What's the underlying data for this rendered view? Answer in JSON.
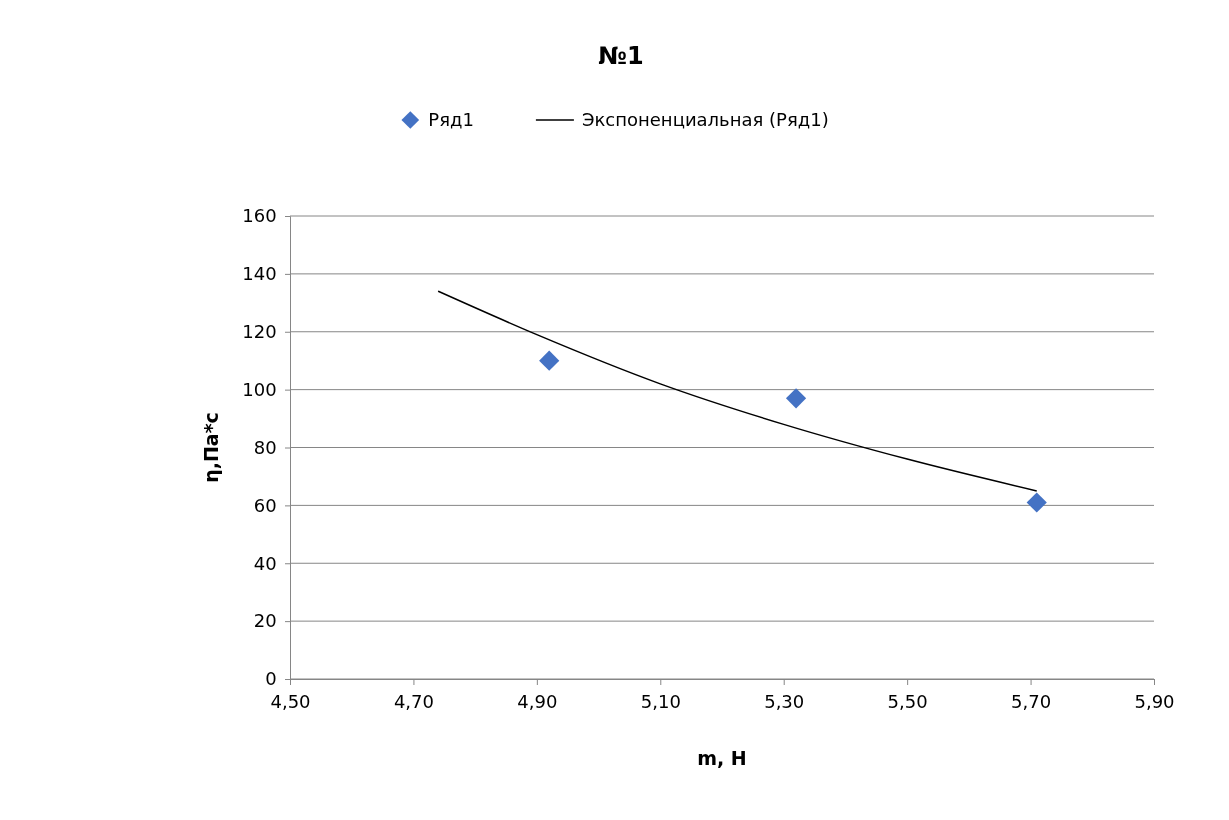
{
  "chart_data": {
    "type": "scatter",
    "title": "№1",
    "xlabel": "m, Н",
    "ylabel": "η,Па*с",
    "series": [
      {
        "name": "Ряд1",
        "type": "scatter",
        "color": "#4472c4",
        "marker": "diamond",
        "x": [
          4.92,
          5.32,
          5.71
        ],
        "values": [
          110,
          97,
          61
        ]
      },
      {
        "name": "Экспоненциальная (Ряд1)",
        "type": "line",
        "color": "#000000",
        "marker": "none",
        "line_style": "solid",
        "x": [
          4.74,
          4.9,
          5.1,
          5.3,
          5.5,
          5.71
        ],
        "values": [
          134,
          119,
          102,
          88,
          76,
          65
        ]
      }
    ],
    "xlim": [
      4.5,
      5.9
    ],
    "xticks": [
      {
        "value": 4.5,
        "label": "4,50"
      },
      {
        "value": 4.7,
        "label": "4,70"
      },
      {
        "value": 4.9,
        "label": "4,90"
      },
      {
        "value": 5.1,
        "label": "5,10"
      },
      {
        "value": 5.3,
        "label": "5,30"
      },
      {
        "value": 5.5,
        "label": "5,50"
      },
      {
        "value": 5.7,
        "label": "5,70"
      },
      {
        "value": 5.9,
        "label": "5,90"
      }
    ],
    "ylim": [
      0,
      160
    ],
    "yticks": [
      0,
      20,
      40,
      60,
      80,
      100,
      120,
      140,
      160
    ],
    "grid": "y",
    "legend": "top"
  }
}
